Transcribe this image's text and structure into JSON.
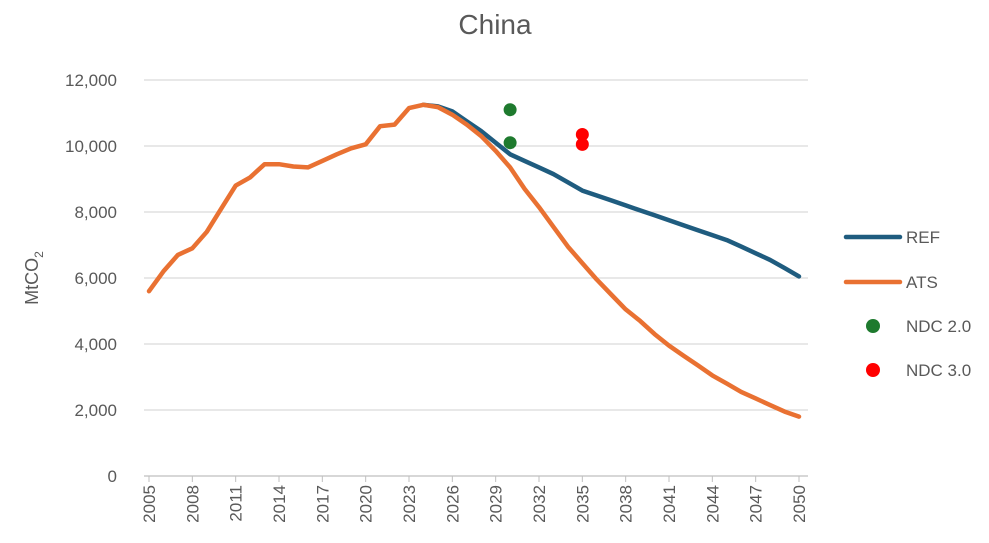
{
  "chart_data": {
    "type": "line",
    "title": "China",
    "ylabel": "MtCO",
    "ylabel_sub": "2",
    "xlabel": "",
    "xlim": [
      2005,
      2050
    ],
    "ylim": [
      0,
      12000
    ],
    "yticks": [
      0,
      2000,
      4000,
      6000,
      8000,
      10000,
      12000
    ],
    "ytick_labels": [
      "0",
      "2,000",
      "4,000",
      "6,000",
      "8,000",
      "10,000",
      "12,000"
    ],
    "xticks": [
      2005,
      2008,
      2011,
      2014,
      2017,
      2020,
      2023,
      2026,
      2029,
      2032,
      2035,
      2038,
      2041,
      2044,
      2047,
      2050
    ],
    "grid": "horizontal",
    "legend_position": "right",
    "series": [
      {
        "name": "REF",
        "kind": "line",
        "color": "#1F5C7F",
        "x": [
          2024,
          2025,
          2026,
          2027,
          2028,
          2029,
          2030,
          2031,
          2032,
          2033,
          2034,
          2035,
          2036,
          2037,
          2038,
          2039,
          2040,
          2041,
          2042,
          2043,
          2044,
          2045,
          2046,
          2047,
          2048,
          2049,
          2050
        ],
        "y": [
          11250,
          11200,
          11050,
          10750,
          10450,
          10100,
          9750,
          9550,
          9350,
          9150,
          8900,
          8650,
          8500,
          8350,
          8200,
          8050,
          7900,
          7750,
          7600,
          7450,
          7300,
          7150,
          6950,
          6750,
          6550,
          6300,
          6050
        ]
      },
      {
        "name": "ATS",
        "kind": "line",
        "color": "#E97132",
        "x": [
          2005,
          2006,
          2007,
          2008,
          2009,
          2010,
          2011,
          2012,
          2013,
          2014,
          2015,
          2016,
          2017,
          2018,
          2019,
          2020,
          2021,
          2022,
          2023,
          2024,
          2025,
          2026,
          2027,
          2028,
          2029,
          2030,
          2031,
          2032,
          2033,
          2034,
          2035,
          2036,
          2037,
          2038,
          2039,
          2040,
          2041,
          2042,
          2043,
          2044,
          2045,
          2046,
          2047,
          2048,
          2049,
          2050
        ],
        "y": [
          5600,
          6200,
          6700,
          6900,
          7400,
          8100,
          8800,
          9050,
          9450,
          9450,
          9380,
          9350,
          9550,
          9750,
          9930,
          10050,
          10600,
          10650,
          11150,
          11250,
          11180,
          10950,
          10650,
          10300,
          9850,
          9350,
          8700,
          8150,
          7550,
          6950,
          6450,
          5950,
          5500,
          5050,
          4700,
          4300,
          3950,
          3650,
          3350,
          3050,
          2800,
          2550,
          2350,
          2150,
          1950,
          1800
        ]
      },
      {
        "name": "NDC 2.0",
        "kind": "points",
        "color": "#1E7A2E",
        "x": [
          2030,
          2030
        ],
        "y": [
          11100,
          10100
        ]
      },
      {
        "name": "NDC 3.0",
        "kind": "points",
        "color": "#FF0000",
        "x": [
          2035,
          2035
        ],
        "y": [
          10350,
          10050
        ]
      }
    ]
  }
}
